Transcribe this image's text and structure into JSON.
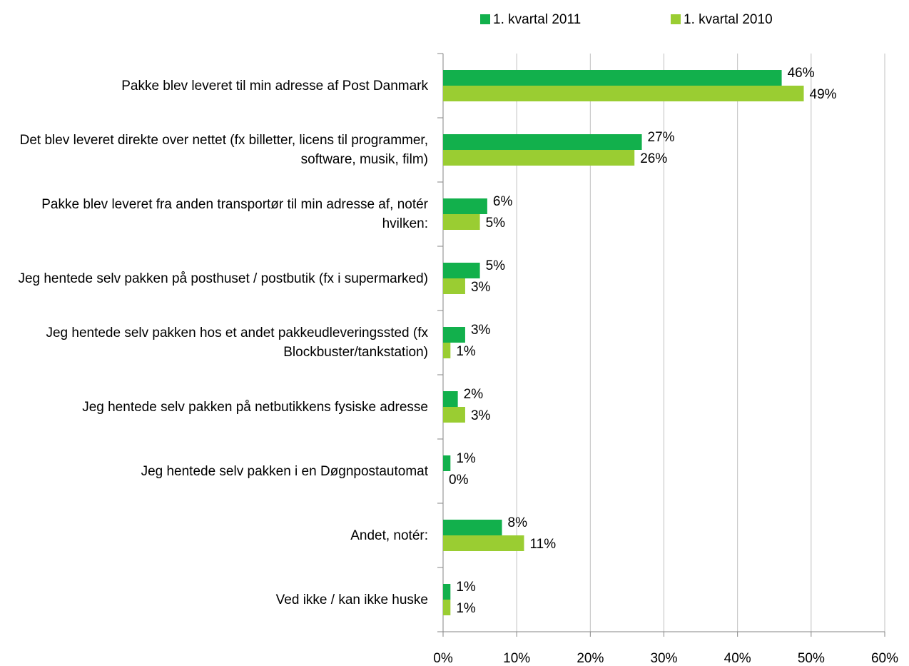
{
  "chart_data": {
    "type": "bar",
    "orientation": "horizontal",
    "categories": [
      "Pakke blev leveret til min adresse af Post Danmark",
      "Det blev leveret direkte over nettet (fx billetter, licens til programmer, software, musik, film)",
      "Pakke blev leveret fra anden transportør til min adresse af, notér hvilken:",
      "Jeg hentede selv pakken på posthuset / postbutik (fx i supermarked)",
      "Jeg hentede selv pakken hos et andet pakkeudleveringssted (fx Blockbuster/tankstation)",
      "Jeg hentede selv pakken på netbutikkens fysiske adresse",
      "Jeg hentede selv pakken i en Døgnpostautomat",
      "Andet, notér:",
      "Ved ikke / kan ikke huske"
    ],
    "series": [
      {
        "name": "1. kvartal 2011",
        "color": "#12b04c",
        "values": [
          46,
          27,
          6,
          5,
          3,
          2,
          1,
          8,
          1
        ],
        "value_labels": [
          "46%",
          "27%",
          "6%",
          "5%",
          "3%",
          "2%",
          "1%",
          "8%",
          "1%"
        ]
      },
      {
        "name": "1. kvartal 2010",
        "color": "#9acd32",
        "values": [
          49,
          26,
          5,
          3,
          1,
          3,
          0,
          11,
          1
        ],
        "value_labels": [
          "49%",
          "26%",
          "5%",
          "3%",
          "1%",
          "3%",
          "0%",
          "11%",
          "1%"
        ]
      }
    ],
    "xlim": [
      0,
      60
    ],
    "xticks": [
      {
        "value": 0,
        "label": "0%"
      },
      {
        "value": 10,
        "label": "10%"
      },
      {
        "value": 20,
        "label": "20%"
      },
      {
        "value": 30,
        "label": "30%"
      },
      {
        "value": 40,
        "label": "40%"
      },
      {
        "value": 50,
        "label": "50%"
      },
      {
        "value": 60,
        "label": "60%"
      }
    ],
    "grid": true,
    "legend": "top"
  }
}
